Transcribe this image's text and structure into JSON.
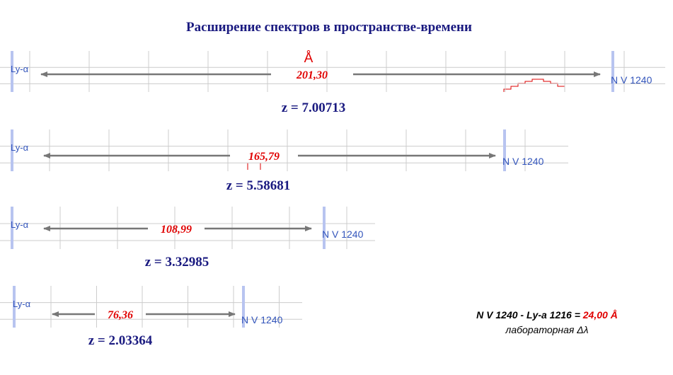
{
  "title": "Расширение спектров в пространстве-времени",
  "unit_symbol": "Å",
  "panels": [
    {
      "left_label": "Ly-α",
      "right_label": "N V 1240",
      "shift": "201,30",
      "redshift": "z = 7.00713"
    },
    {
      "left_label": "Ly-α",
      "right_label": "N V 1240",
      "shift": "165,79",
      "redshift": "z = 5.58681"
    },
    {
      "left_label": "Ly-α",
      "right_label": "N V 1240",
      "shift": "108,99",
      "redshift": "z = 3.32985"
    },
    {
      "left_label": "Ly-α",
      "right_label": "N V 1240",
      "shift": "76,36",
      "redshift": "z = 2.03364"
    }
  ],
  "formula": {
    "expression": "N V 1240 - Ly-a 1216  = ",
    "value": "24,00 Å",
    "caption": "лабораторная Δλ"
  }
}
